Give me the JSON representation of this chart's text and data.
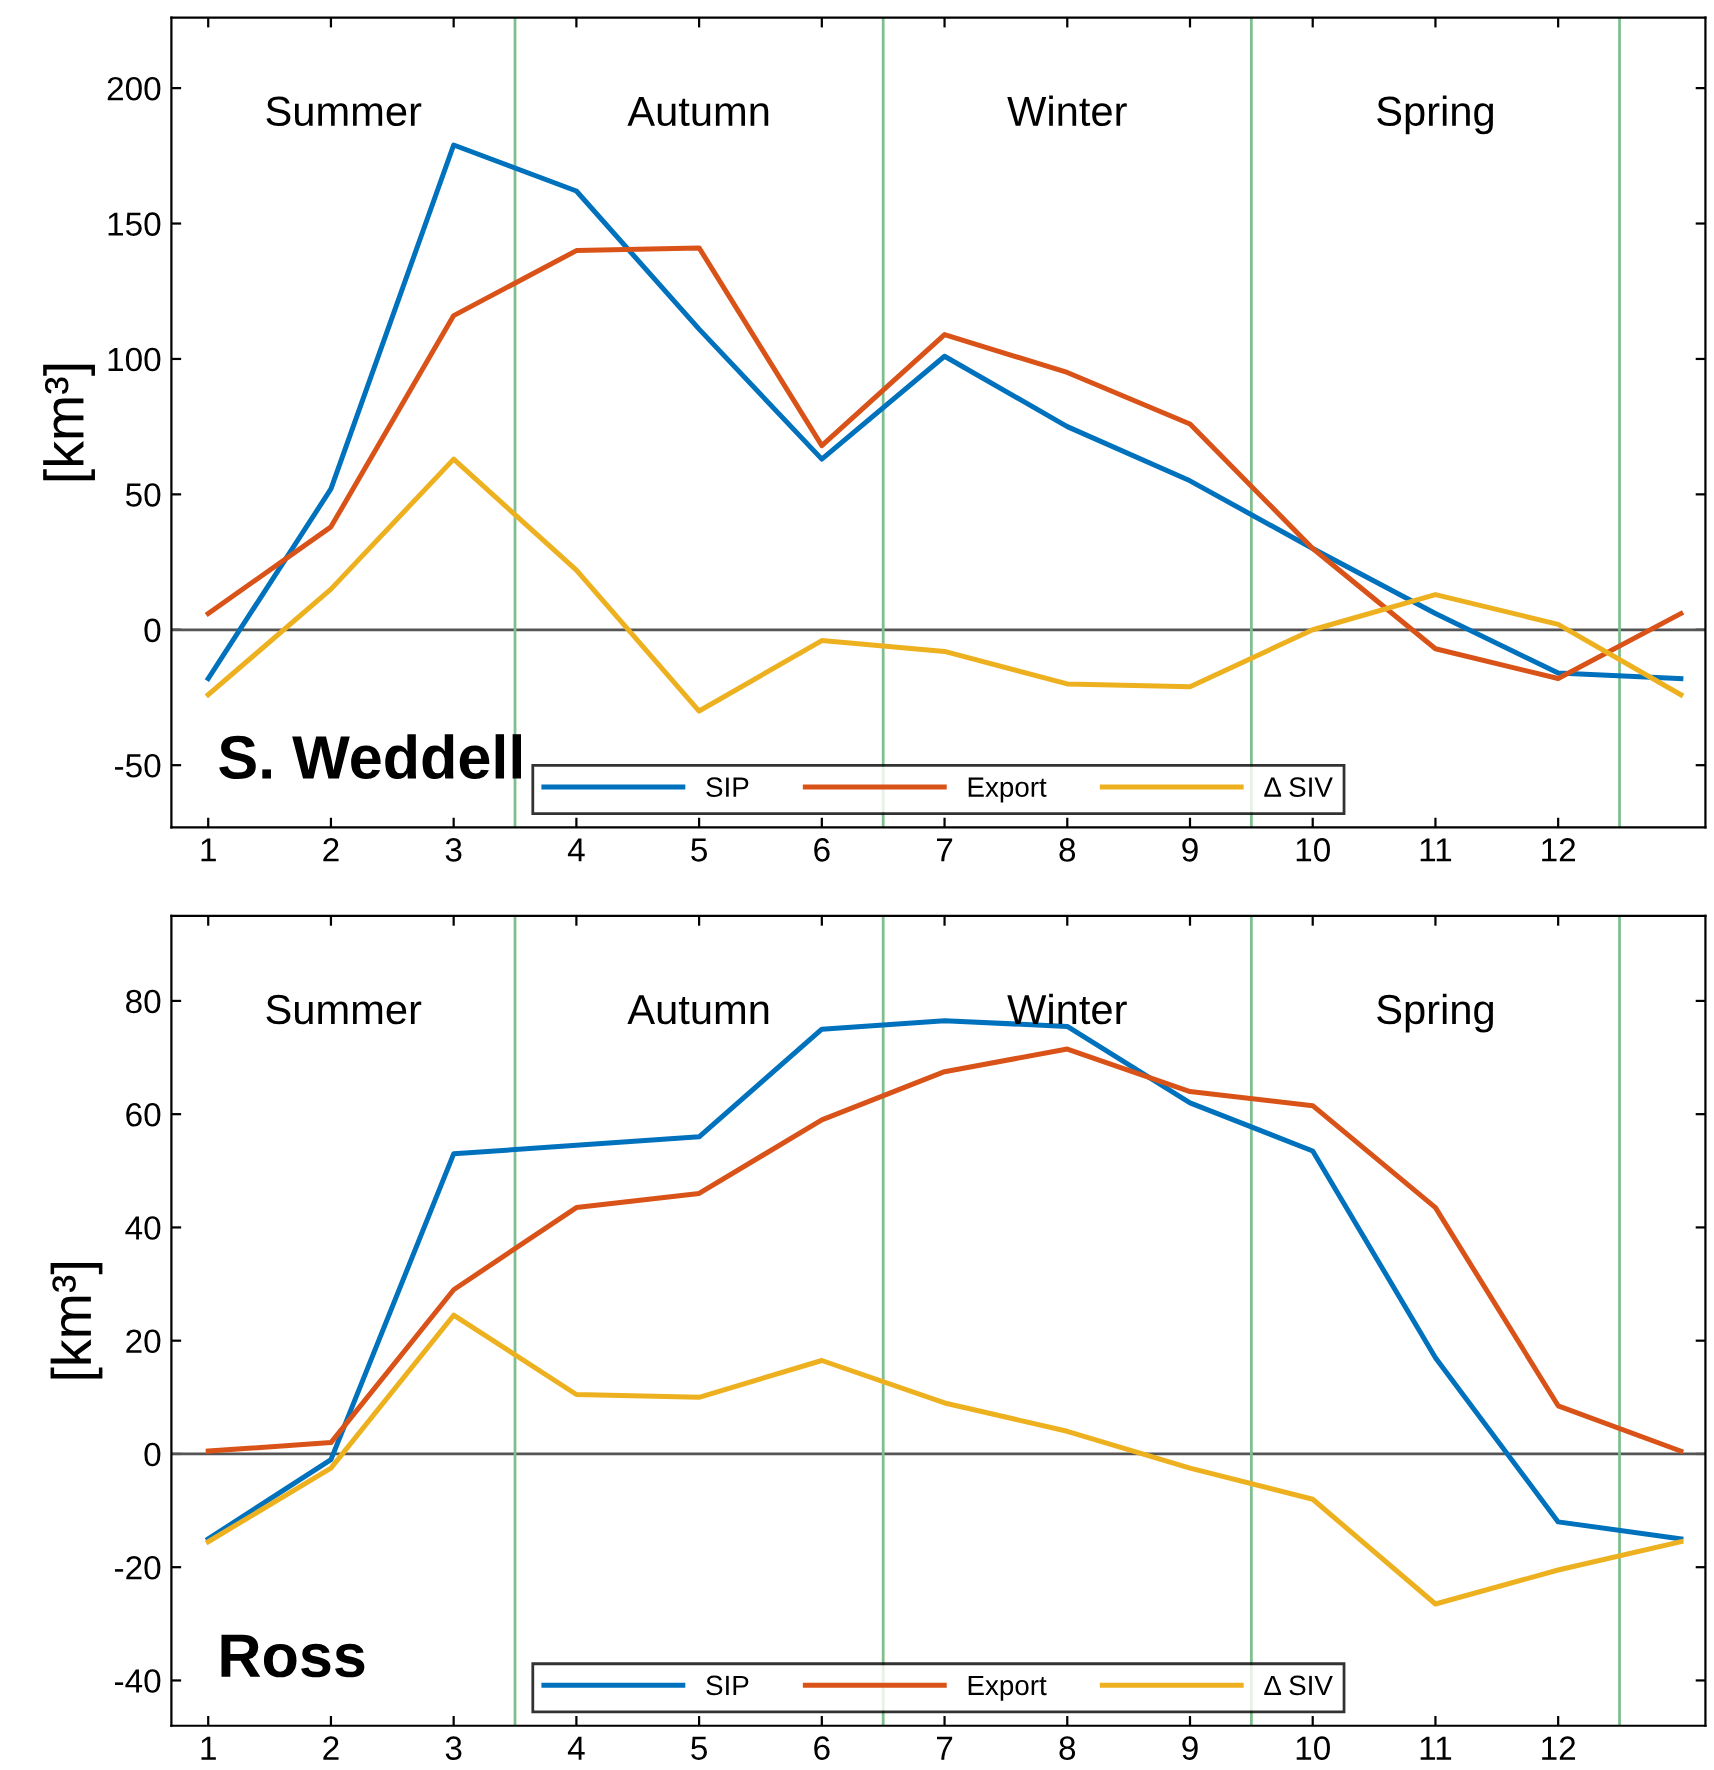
{
  "chart_data": [
    {
      "type": "line",
      "title": "S. Weddell",
      "ylabel": "[km³]",
      "x": [
        1,
        2,
        3,
        4,
        5,
        6,
        7,
        8,
        9,
        10,
        11,
        12,
        13
      ],
      "series": [
        {
          "name": "SIP",
          "color": "#0072bd",
          "values": [
            -18,
            52,
            179,
            162,
            111,
            63,
            101,
            75,
            55,
            30,
            6,
            -16,
            -18
          ]
        },
        {
          "name": "Export",
          "color": "#d95319",
          "values": [
            6,
            38,
            116,
            140,
            141,
            68,
            109,
            95,
            76,
            30,
            -7,
            -18,
            6
          ]
        },
        {
          "name": "Δ SIV",
          "color": "#edb120",
          "values": [
            -24,
            15,
            63,
            22,
            -30,
            -4,
            -8,
            -20,
            -21,
            0,
            13,
            2,
            -24
          ]
        }
      ],
      "xlim": [
        0.7,
        13.2
      ],
      "ylim": [
        -73,
        226
      ],
      "xticks": [
        1,
        2,
        3,
        4,
        5,
        6,
        7,
        8,
        9,
        10,
        11,
        12
      ],
      "yticks": [
        -50,
        0,
        50,
        100,
        150,
        200
      ],
      "ref_lines": [
        {
          "axis": "y",
          "value": 0,
          "color": "#555555"
        },
        {
          "axis": "x",
          "value": 3.5,
          "color": "#7fbf8f"
        },
        {
          "axis": "x",
          "value": 6.5,
          "color": "#7fbf8f"
        },
        {
          "axis": "x",
          "value": 9.5,
          "color": "#7fbf8f"
        },
        {
          "axis": "x",
          "value": 12.5,
          "color": "#7fbf8f"
        }
      ],
      "annotations": [
        "Summer",
        "Autumn",
        "Winter",
        "Spring"
      ],
      "legend": "bottom",
      "grid": false
    },
    {
      "type": "line",
      "title": "Ross",
      "ylabel": "[km³]",
      "x": [
        1,
        2,
        3,
        4,
        5,
        6,
        7,
        8,
        9,
        10,
        11,
        12,
        13
      ],
      "series": [
        {
          "name": "SIP",
          "color": "#0072bd",
          "values": [
            -15,
            -1,
            53,
            54.5,
            56,
            75,
            76.5,
            75.5,
            62,
            53.5,
            17,
            -12,
            -15
          ]
        },
        {
          "name": "Export",
          "color": "#d95319",
          "values": [
            0.5,
            2,
            29,
            43.5,
            46,
            59,
            67.5,
            71.5,
            64,
            61.5,
            43.5,
            8.5,
            0.5
          ]
        },
        {
          "name": "Δ SIV",
          "color": "#edb120",
          "values": [
            -15.5,
            -2.5,
            24.5,
            10.5,
            10,
            16.5,
            9,
            4,
            -2.5,
            -8,
            -26.5,
            -20.5,
            -15.5
          ]
        }
      ],
      "xlim": [
        0.7,
        13.2
      ],
      "ylim": [
        -48,
        95
      ],
      "xticks": [
        1,
        2,
        3,
        4,
        5,
        6,
        7,
        8,
        9,
        10,
        11,
        12
      ],
      "yticks": [
        -40,
        -20,
        0,
        20,
        40,
        60,
        80
      ],
      "ref_lines": [
        {
          "axis": "y",
          "value": 0,
          "color": "#555555"
        },
        {
          "axis": "x",
          "value": 3.5,
          "color": "#7fbf8f"
        },
        {
          "axis": "x",
          "value": 6.5,
          "color": "#7fbf8f"
        },
        {
          "axis": "x",
          "value": 9.5,
          "color": "#7fbf8f"
        },
        {
          "axis": "x",
          "value": 12.5,
          "color": "#7fbf8f"
        }
      ],
      "annotations": [
        "Summer",
        "Autumn",
        "Winter",
        "Spring"
      ],
      "legend": "bottom",
      "grid": false
    }
  ]
}
